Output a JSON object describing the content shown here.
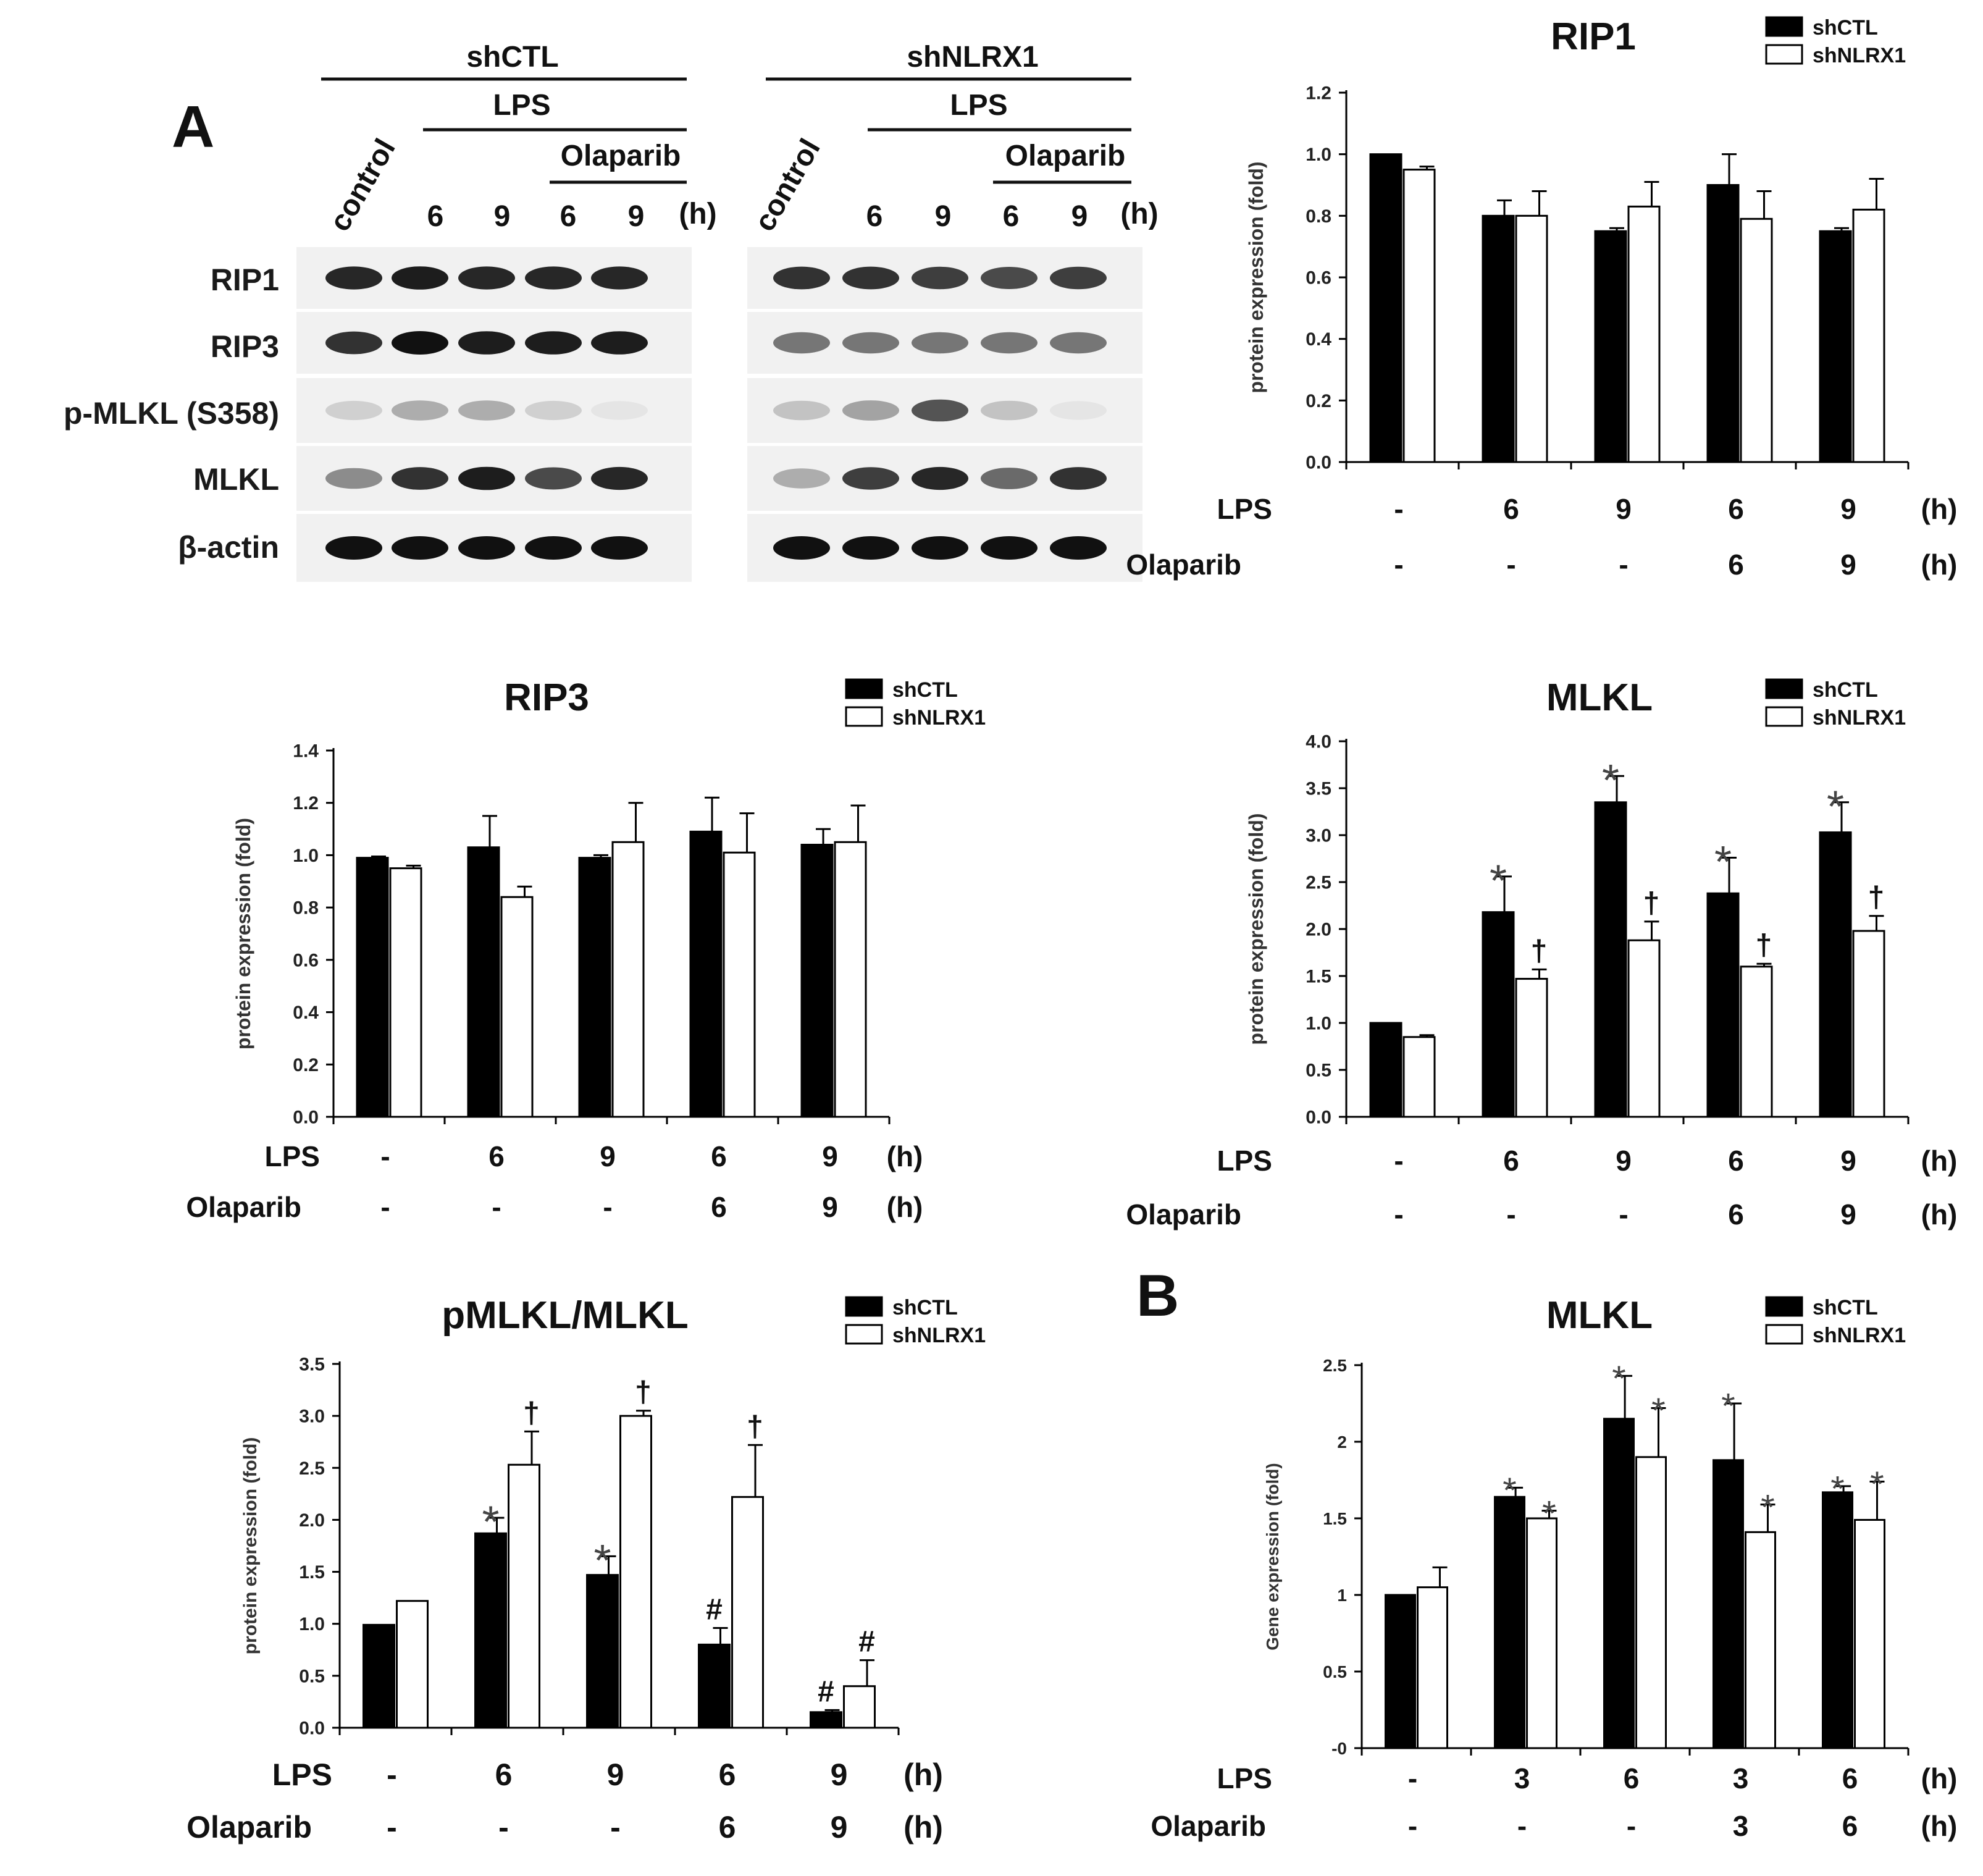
{
  "panels": {
    "a": "A",
    "b": "B"
  },
  "blot": {
    "groups": [
      {
        "name": "shCTL",
        "lps": "LPS",
        "olaparib": "Olaparib",
        "lanes": [
          "control",
          "6",
          "9",
          "6",
          "9",
          "(h)"
        ]
      },
      {
        "name": "shNLRX1",
        "lps": "LPS",
        "olaparib": "Olaparib",
        "lanes": [
          "control",
          "6",
          "9",
          "6",
          "9",
          "(h)"
        ]
      }
    ],
    "rows": [
      "RIP1",
      "RIP3",
      "p-MLKL (S358)",
      "MLKL",
      "β-actin"
    ]
  },
  "row_labels": {
    "lps": "LPS",
    "olaparib": "Olaparib",
    "unit": "(h)"
  },
  "chart_data": [
    {
      "id": "rip1",
      "type": "bar",
      "title": "RIP1",
      "ylabel": "protein expression (fold)",
      "ylim": [
        0,
        1.2
      ],
      "yticks": [
        "0.0",
        "0.2",
        "0.4",
        "0.6",
        "0.8",
        "1.0",
        "1.2"
      ],
      "lps": [
        "-",
        "6",
        "9",
        "6",
        "9"
      ],
      "olaparib": [
        "-",
        "-",
        "-",
        "6",
        "9"
      ],
      "series": [
        {
          "name": "shCTL",
          "color": "#000000",
          "values": [
            1.0,
            0.8,
            0.75,
            0.9,
            0.75
          ],
          "errors": [
            0.0,
            0.05,
            0.01,
            0.1,
            0.01
          ],
          "marks": [
            "",
            "",
            "",
            "",
            ""
          ]
        },
        {
          "name": "shNLRX1",
          "color": "#ffffff",
          "values": [
            0.95,
            0.8,
            0.83,
            0.79,
            0.82
          ],
          "errors": [
            0.01,
            0.08,
            0.08,
            0.09,
            0.1
          ],
          "marks": [
            "",
            "",
            "",
            "",
            ""
          ]
        }
      ]
    },
    {
      "id": "rip3",
      "type": "bar",
      "title": "RIP3",
      "ylabel": "protein expression (fold)",
      "ylim": [
        0,
        1.4
      ],
      "yticks": [
        "0.0",
        "0.2",
        "0.4",
        "0.6",
        "0.8",
        "1.0",
        "1.2",
        "1.4"
      ],
      "lps": [
        "-",
        "6",
        "9",
        "6",
        "9"
      ],
      "olaparib": [
        "-",
        "-",
        "-",
        "6",
        "9"
      ],
      "series": [
        {
          "name": "shCTL",
          "color": "#000000",
          "values": [
            0.99,
            1.03,
            0.99,
            1.09,
            1.04
          ],
          "errors": [
            0.005,
            0.12,
            0.01,
            0.13,
            0.06
          ],
          "marks": [
            "",
            "",
            "",
            "",
            ""
          ]
        },
        {
          "name": "shNLRX1",
          "color": "#ffffff",
          "values": [
            0.95,
            0.84,
            1.05,
            1.01,
            1.05
          ],
          "errors": [
            0.01,
            0.04,
            0.15,
            0.15,
            0.14
          ],
          "marks": [
            "",
            "",
            "",
            "",
            ""
          ]
        }
      ]
    },
    {
      "id": "mlkl",
      "type": "bar",
      "title": "MLKL",
      "ylabel": "protein expression (fold)",
      "ylim": [
        0,
        4.0
      ],
      "yticks": [
        "0.0",
        "0.5",
        "1.0",
        "1.5",
        "2.0",
        "2.5",
        "3.0",
        "3.5",
        "4.0"
      ],
      "lps": [
        "-",
        "6",
        "9",
        "6",
        "9"
      ],
      "olaparib": [
        "-",
        "-",
        "-",
        "6",
        "9"
      ],
      "series": [
        {
          "name": "shCTL",
          "color": "#000000",
          "values": [
            1.0,
            2.18,
            3.35,
            2.38,
            3.03
          ],
          "errors": [
            0.0,
            0.38,
            0.28,
            0.38,
            0.32
          ],
          "marks": [
            "",
            "*",
            "*",
            "*",
            "*"
          ]
        },
        {
          "name": "shNLRX1",
          "color": "#ffffff",
          "values": [
            0.85,
            1.47,
            1.88,
            1.6,
            1.98
          ],
          "errors": [
            0.02,
            0.1,
            0.2,
            0.03,
            0.16
          ],
          "marks": [
            "",
            "†",
            "†",
            "†",
            "†"
          ]
        }
      ]
    },
    {
      "id": "pmlkl",
      "type": "bar",
      "title": "pMLKL/MLKL",
      "ylabel": "protein expression (fold)",
      "ylim": [
        0,
        3.5
      ],
      "yticks": [
        "0.0",
        "0.5",
        "1.0",
        "1.5",
        "2.0",
        "2.5",
        "3.0",
        "3.5"
      ],
      "lps": [
        "-",
        "6",
        "9",
        "6",
        "9"
      ],
      "olaparib": [
        "-",
        "-",
        "-",
        "6",
        "9"
      ],
      "series": [
        {
          "name": "shCTL",
          "color": "#000000",
          "values": [
            0.99,
            1.87,
            1.47,
            0.8,
            0.15
          ],
          "errors": [
            0.0,
            0.15,
            0.18,
            0.16,
            0.02
          ],
          "marks": [
            "",
            "*",
            "*",
            "#",
            "#"
          ]
        },
        {
          "name": "shNLRX1",
          "color": "#ffffff",
          "values": [
            1.22,
            2.53,
            3.0,
            2.22,
            0.4
          ],
          "errors": [
            0.0,
            0.32,
            0.05,
            0.5,
            0.25
          ],
          "marks": [
            "",
            "†",
            "†",
            "†",
            "#"
          ]
        }
      ]
    },
    {
      "id": "mlkl-gene",
      "type": "bar",
      "title": "MLKL",
      "ylabel": "Gene expression (fold)",
      "ylim": [
        0,
        2.5
      ],
      "yticks": [
        "-0",
        "0.5",
        "1",
        "1.5",
        "2",
        "2.5"
      ],
      "lps": [
        "-",
        "3",
        "6",
        "3",
        "6"
      ],
      "olaparib": [
        "-",
        "-",
        "-",
        "3",
        "6"
      ],
      "series": [
        {
          "name": "shCTL",
          "color": "#000000",
          "values": [
            1.0,
            1.64,
            2.15,
            1.88,
            1.67
          ],
          "errors": [
            0.0,
            0.06,
            0.28,
            0.37,
            0.04
          ],
          "marks": [
            "",
            "*",
            "*",
            "*",
            "*"
          ]
        },
        {
          "name": "shNLRX1",
          "color": "#ffffff",
          "values": [
            1.05,
            1.5,
            1.9,
            1.41,
            1.49
          ],
          "errors": [
            0.13,
            0.05,
            0.32,
            0.18,
            0.25
          ],
          "marks": [
            "",
            "*",
            "*",
            "*",
            "*"
          ]
        }
      ]
    }
  ]
}
